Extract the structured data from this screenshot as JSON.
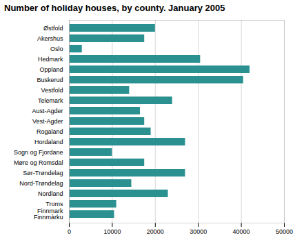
{
  "chart_data": {
    "type": "bar",
    "orientation": "horizontal",
    "title": "Number of holiday houses, by county. January 2005",
    "categories": [
      "Østfold",
      "Akershus",
      "Oslo",
      "Hedmark",
      "Oppland",
      "Buskerud",
      "Vestfold",
      "Telemark",
      "Aust-Agder",
      "Vest-Agder",
      "Rogaland",
      "Hordaland",
      "Sogn og Fjordane",
      "Møre og Romsdal",
      "Sør-Trøndelag",
      "Nord-Trøndelag",
      "Nordland",
      "Troms",
      "Finnmark\nFinnmàrku"
    ],
    "values": [
      20000,
      17500,
      3000,
      30500,
      42000,
      40500,
      14000,
      24000,
      16500,
      17500,
      19000,
      27000,
      10000,
      17500,
      27000,
      14500,
      23000,
      11000,
      10500
    ],
    "color": "#2a9090",
    "xlim": [
      0,
      50000
    ],
    "xticks": [
      0,
      10000,
      20000,
      30000,
      40000,
      50000
    ],
    "grid": true
  }
}
